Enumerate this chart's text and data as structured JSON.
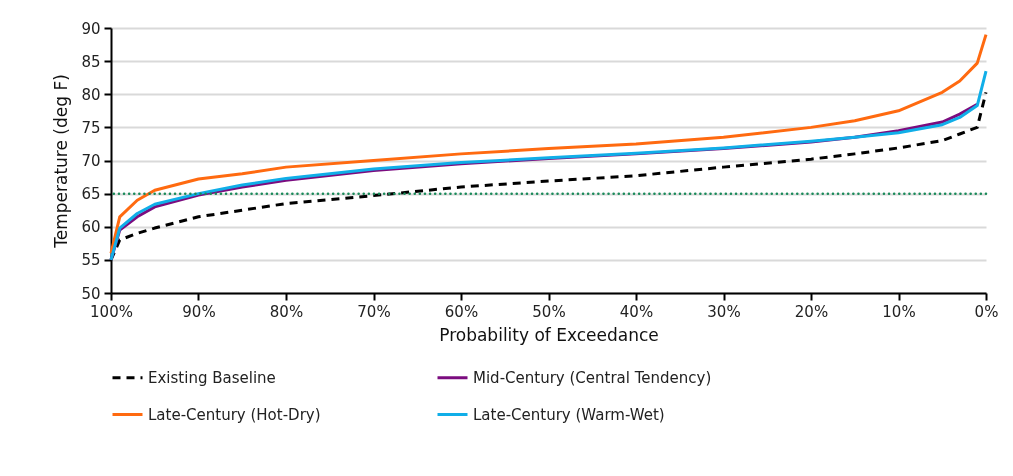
{
  "chart_data": {
    "type": "line",
    "xlabel": "Probability of Exceedance",
    "ylabel": "Temperature (deg F)",
    "x": [
      100,
      99,
      97,
      95,
      90,
      85,
      80,
      70,
      60,
      50,
      40,
      30,
      20,
      15,
      10,
      5,
      3,
      1,
      0
    ],
    "series": [
      {
        "name": "Existing Baseline",
        "color": "#000000",
        "line_style": "dashed",
        "values": [
          55,
          58,
          59,
          59.8,
          61.5,
          62.5,
          63.5,
          64.7,
          66,
          66.9,
          67.7,
          69,
          70.2,
          71,
          71.9,
          73,
          74,
          75,
          80.3
        ]
      },
      {
        "name": "Mid-Century (Central Tendency)",
        "color": "#7b0c7f",
        "line_style": "solid",
        "values": [
          55,
          59.5,
          61.5,
          63,
          64.8,
          66,
          67,
          68.5,
          69.5,
          70.3,
          71,
          71.8,
          72.8,
          73.5,
          74.5,
          75.8,
          77,
          78.5,
          null
        ]
      },
      {
        "name": "Late-Century (Hot-Dry)",
        "color": "#ff6a10",
        "line_style": "solid",
        "values": [
          56,
          61.5,
          64,
          65.5,
          67.2,
          68,
          69,
          70,
          71,
          71.8,
          72.5,
          73.5,
          75,
          76,
          77.5,
          80.3,
          82,
          84.7,
          89
        ]
      },
      {
        "name": "Late-Century (Warm-Wet)",
        "color": "#10aee8",
        "line_style": "solid",
        "values": [
          55,
          59.8,
          62,
          63.4,
          65,
          66.3,
          67.3,
          68.7,
          69.7,
          70.4,
          71.1,
          71.9,
          72.9,
          73.5,
          74.2,
          75.4,
          76.5,
          78.3,
          83.5
        ]
      }
    ],
    "xlim": [
      100,
      0
    ],
    "xticks": [
      {
        "value": 100,
        "label": "100%"
      },
      {
        "value": 90,
        "label": "90%"
      },
      {
        "value": 80,
        "label": "80%"
      },
      {
        "value": 70,
        "label": "70%"
      },
      {
        "value": 60,
        "label": "60%"
      },
      {
        "value": 50,
        "label": "50%"
      },
      {
        "value": 40,
        "label": "40%"
      },
      {
        "value": 30,
        "label": "30%"
      },
      {
        "value": 20,
        "label": "20%"
      },
      {
        "value": 10,
        "label": "10%"
      },
      {
        "value": 0,
        "label": "0%"
      }
    ],
    "ylim": [
      50,
      90
    ],
    "yticks": [
      50,
      55,
      60,
      65,
      70,
      75,
      80,
      85,
      90
    ],
    "ref_lines": [
      {
        "axis": "y",
        "value": 65,
        "color": "#1a8a5a",
        "line_style": "dotted"
      }
    ],
    "grid": "y",
    "legend": "bottom"
  }
}
